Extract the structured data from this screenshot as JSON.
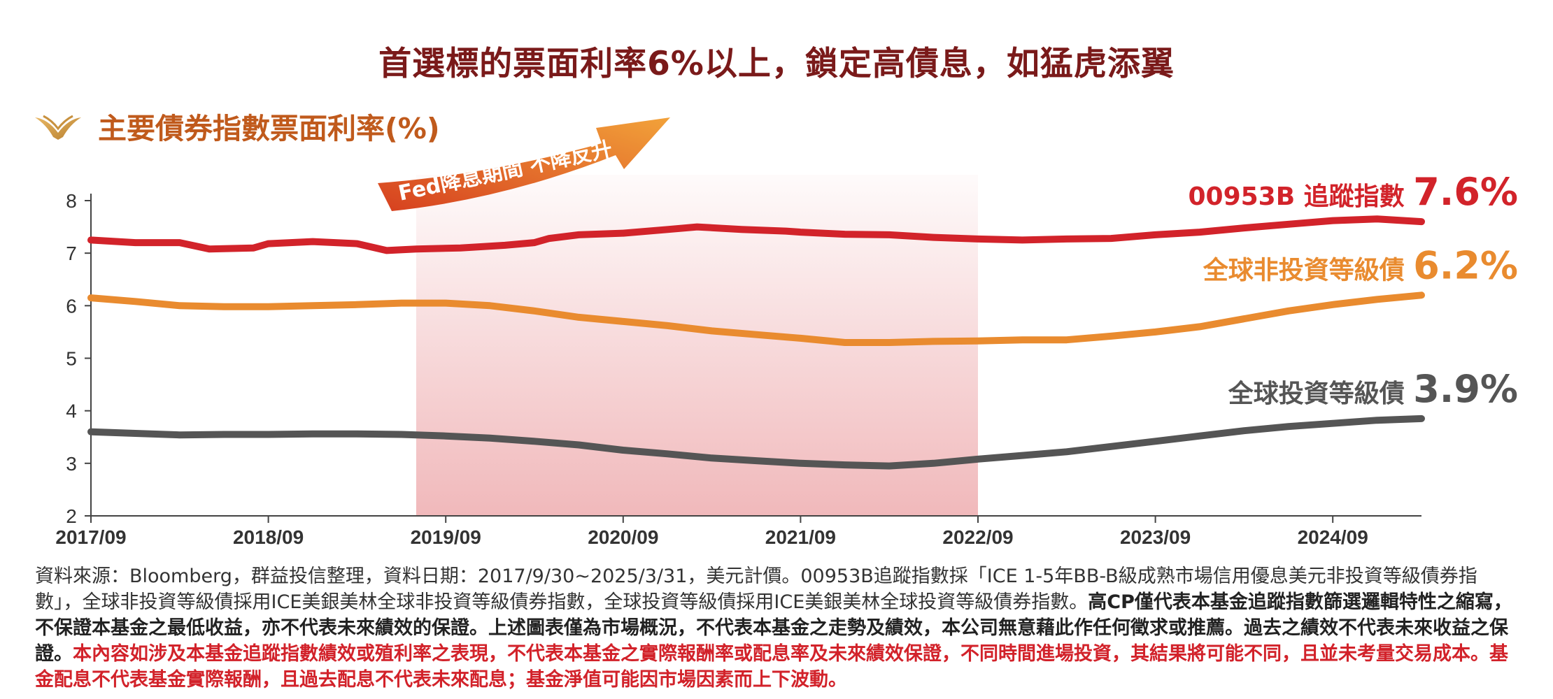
{
  "header": {
    "main_title": "首選標的票面利率6%以上，鎖定高債息，如猛虎添翼",
    "subtitle": "主要債券指數票面利率(%)",
    "logo_icon": "wings-logo-icon"
  },
  "chart_data": {
    "type": "line",
    "title": "主要債券指數票面利率(%)",
    "xlabel": "",
    "ylabel": "",
    "ylim": [
      2,
      8
    ],
    "y_ticks": [
      "2",
      "3",
      "4",
      "5",
      "6",
      "7",
      "8"
    ],
    "x_ticks": [
      "2017/09",
      "2018/09",
      "2019/09",
      "2020/09",
      "2021/09",
      "2022/09",
      "2023/09",
      "2024/09"
    ],
    "x_range": [
      "2017/09",
      "2025/03"
    ],
    "grid": false,
    "shaded_period": {
      "label": "Fed降息期間 不降反升",
      "start": "2019/07",
      "end": "2022/09"
    },
    "series": [
      {
        "name": "00953B 追蹤指數",
        "end_label": "7.6%",
        "color": "#d2232a",
        "points": [
          [
            "2017/09",
            7.25
          ],
          [
            "2017/12",
            7.2
          ],
          [
            "2018/03",
            7.2
          ],
          [
            "2018/05",
            7.08
          ],
          [
            "2018/08",
            7.1
          ],
          [
            "2018/09",
            7.18
          ],
          [
            "2018/12",
            7.22
          ],
          [
            "2019/03",
            7.18
          ],
          [
            "2019/05",
            7.05
          ],
          [
            "2019/07",
            7.08
          ],
          [
            "2019/10",
            7.1
          ],
          [
            "2020/01",
            7.15
          ],
          [
            "2020/03",
            7.2
          ],
          [
            "2020/04",
            7.28
          ],
          [
            "2020/06",
            7.35
          ],
          [
            "2020/09",
            7.38
          ],
          [
            "2020/12",
            7.45
          ],
          [
            "2021/02",
            7.5
          ],
          [
            "2021/05",
            7.45
          ],
          [
            "2021/08",
            7.42
          ],
          [
            "2021/09",
            7.4
          ],
          [
            "2021/12",
            7.36
          ],
          [
            "2022/03",
            7.35
          ],
          [
            "2022/06",
            7.3
          ],
          [
            "2022/09",
            7.27
          ],
          [
            "2022/12",
            7.25
          ],
          [
            "2023/03",
            7.27
          ],
          [
            "2023/06",
            7.28
          ],
          [
            "2023/09",
            7.35
          ],
          [
            "2023/12",
            7.4
          ],
          [
            "2024/03",
            7.48
          ],
          [
            "2024/06",
            7.55
          ],
          [
            "2024/09",
            7.62
          ],
          [
            "2024/12",
            7.65
          ],
          [
            "2025/03",
            7.6
          ]
        ]
      },
      {
        "name": "全球非投資等級債",
        "end_label": "6.2%",
        "color": "#e98b2f",
        "points": [
          [
            "2017/09",
            6.15
          ],
          [
            "2017/12",
            6.08
          ],
          [
            "2018/03",
            6.0
          ],
          [
            "2018/06",
            5.98
          ],
          [
            "2018/09",
            5.98
          ],
          [
            "2018/12",
            6.0
          ],
          [
            "2019/03",
            6.02
          ],
          [
            "2019/06",
            6.05
          ],
          [
            "2019/09",
            6.05
          ],
          [
            "2019/12",
            6.0
          ],
          [
            "2020/03",
            5.9
          ],
          [
            "2020/06",
            5.78
          ],
          [
            "2020/09",
            5.7
          ],
          [
            "2020/12",
            5.62
          ],
          [
            "2021/03",
            5.52
          ],
          [
            "2021/06",
            5.45
          ],
          [
            "2021/09",
            5.38
          ],
          [
            "2021/12",
            5.3
          ],
          [
            "2022/03",
            5.3
          ],
          [
            "2022/06",
            5.32
          ],
          [
            "2022/09",
            5.33
          ],
          [
            "2022/12",
            5.35
          ],
          [
            "2023/03",
            5.35
          ],
          [
            "2023/06",
            5.42
          ],
          [
            "2023/09",
            5.5
          ],
          [
            "2023/12",
            5.6
          ],
          [
            "2024/03",
            5.75
          ],
          [
            "2024/06",
            5.9
          ],
          [
            "2024/09",
            6.02
          ],
          [
            "2024/12",
            6.12
          ],
          [
            "2025/03",
            6.2
          ]
        ]
      },
      {
        "name": "全球投資等級債",
        "end_label": "3.9%",
        "color": "#555555",
        "points": [
          [
            "2017/09",
            3.6
          ],
          [
            "2017/12",
            3.57
          ],
          [
            "2018/03",
            3.54
          ],
          [
            "2018/06",
            3.55
          ],
          [
            "2018/09",
            3.55
          ],
          [
            "2018/12",
            3.56
          ],
          [
            "2019/03",
            3.56
          ],
          [
            "2019/06",
            3.55
          ],
          [
            "2019/09",
            3.52
          ],
          [
            "2019/12",
            3.48
          ],
          [
            "2020/03",
            3.42
          ],
          [
            "2020/06",
            3.35
          ],
          [
            "2020/09",
            3.25
          ],
          [
            "2020/12",
            3.18
          ],
          [
            "2021/03",
            3.1
          ],
          [
            "2021/06",
            3.05
          ],
          [
            "2021/09",
            3.0
          ],
          [
            "2021/12",
            2.97
          ],
          [
            "2022/03",
            2.95
          ],
          [
            "2022/06",
            3.0
          ],
          [
            "2022/09",
            3.08
          ],
          [
            "2022/12",
            3.15
          ],
          [
            "2023/03",
            3.22
          ],
          [
            "2023/06",
            3.32
          ],
          [
            "2023/09",
            3.42
          ],
          [
            "2023/12",
            3.52
          ],
          [
            "2024/03",
            3.62
          ],
          [
            "2024/06",
            3.7
          ],
          [
            "2024/09",
            3.76
          ],
          [
            "2024/12",
            3.82
          ],
          [
            "2025/03",
            3.85
          ]
        ]
      }
    ]
  },
  "footnote": {
    "normal": "資料來源：Bloomberg，群益投信整理，資料日期：2017/9/30~2025/3/31，美元計價。00953B追蹤指數採「ICE 1-5年BB-B級成熟市場信用優息美元非投資等級債券指數」，全球非投資等級債採用ICE美銀美林全球非投資等級債券指數，全球投資等級債採用ICE美銀美林全球投資等級債券指數。",
    "bold": "高CP僅代表本基金追蹤指數篩選邏輯特性之縮寫，不保證本基金之最低收益，亦不代表未來績效的保證。上述圖表僅為市場概況，不代表本基金之走勢及績效，本公司無意藉此作任何徵求或推薦。過去之績效不代表未來收益之保證。",
    "red": "本內容如涉及本基金追蹤指數績效或殖利率之表現，不代表本基金之實際報酬率或配息率及未來績效保證，不同時間進場投資，其結果將可能不同，且並未考量交易成本。基金配息不代表基金實際報酬，且過去配息不代表未來配息；基金淨值可能因市場因素而上下波動。"
  }
}
